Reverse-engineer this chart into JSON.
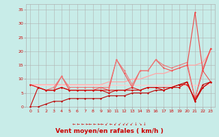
{
  "xlabel": "Vent moyen/en rafales ( km/h )",
  "background_color": "#c8ece8",
  "grid_color": "#b0b0b0",
  "text_color": "#cc0000",
  "ylim": [
    0,
    37
  ],
  "xlim": [
    -0.5,
    23.5
  ],
  "yticks": [
    0,
    5,
    10,
    15,
    20,
    25,
    30,
    35
  ],
  "xticks": [
    0,
    1,
    2,
    3,
    4,
    5,
    6,
    7,
    8,
    9,
    10,
    11,
    12,
    13,
    14,
    15,
    16,
    17,
    18,
    19,
    20,
    21,
    22,
    23
  ],
  "series": [
    {
      "x": [
        0,
        1,
        2,
        3,
        4,
        5,
        6,
        7,
        8,
        9,
        10,
        11,
        12,
        13,
        14,
        15,
        16,
        17,
        18,
        19,
        20,
        21,
        22,
        23
      ],
      "y": [
        0,
        0,
        1,
        2,
        2,
        3,
        3,
        3,
        3,
        3,
        4,
        4,
        4,
        5,
        5,
        5,
        6,
        6,
        7,
        8,
        9,
        2,
        8,
        9
      ],
      "color": "#bb0000",
      "lw": 0.8,
      "marker": "D",
      "ms": 1.5,
      "zorder": 5
    },
    {
      "x": [
        0,
        1,
        2,
        3,
        4,
        5,
        6,
        7,
        8,
        9,
        10,
        11,
        12,
        13,
        14,
        15,
        16,
        17,
        18,
        19,
        20,
        21,
        22,
        23
      ],
      "y": [
        0,
        7,
        6,
        6,
        7,
        6,
        6,
        6,
        6,
        6,
        5,
        6,
        6,
        6,
        6,
        7,
        7,
        6,
        7,
        7,
        9,
        2,
        7,
        9
      ],
      "color": "#cc0000",
      "lw": 0.8,
      "marker": "D",
      "ms": 1.5,
      "zorder": 5
    },
    {
      "x": [
        0,
        1,
        2,
        3,
        4,
        5,
        6,
        7,
        8,
        9,
        10,
        11,
        12,
        13,
        14,
        15,
        16,
        17,
        18,
        19,
        20,
        21,
        22,
        23
      ],
      "y": [
        8,
        7,
        6,
        6,
        7,
        6,
        6,
        6,
        6,
        6,
        6,
        6,
        6,
        7,
        6,
        7,
        7,
        7,
        7,
        8,
        8,
        3,
        7,
        9
      ],
      "color": "#dd2222",
      "lw": 0.8,
      "marker": "D",
      "ms": 1.5,
      "zorder": 4
    },
    {
      "x": [
        0,
        1,
        2,
        3,
        4,
        5,
        6,
        7,
        8,
        9,
        10,
        11,
        12,
        13,
        14,
        15,
        16,
        17,
        18,
        19,
        20,
        21,
        22,
        23
      ],
      "y": [
        8,
        7,
        6,
        6,
        11,
        6,
        6,
        6,
        6,
        7,
        6,
        17,
        12,
        7,
        13,
        13,
        17,
        14,
        13,
        14,
        15,
        3,
        13,
        9
      ],
      "color": "#ee5555",
      "lw": 0.8,
      "marker": "D",
      "ms": 1.5,
      "zorder": 3
    },
    {
      "x": [
        0,
        1,
        2,
        3,
        4,
        5,
        6,
        7,
        8,
        9,
        10,
        11,
        12,
        13,
        14,
        15,
        16,
        17,
        18,
        19,
        20,
        21,
        22,
        23
      ],
      "y": [
        8,
        7,
        6,
        7,
        11,
        7,
        7,
        7,
        7,
        7,
        7,
        17,
        13,
        8,
        13,
        13,
        17,
        15,
        14,
        15,
        16,
        3,
        14,
        21
      ],
      "color": "#ee7777",
      "lw": 0.8,
      "marker": "D",
      "ms": 1.5,
      "zorder": 3
    },
    {
      "x": [
        0,
        1,
        2,
        3,
        4,
        5,
        6,
        7,
        8,
        9,
        10,
        11,
        12,
        13,
        14,
        15,
        16,
        17,
        18,
        19,
        20,
        21,
        22,
        23
      ],
      "y": [
        8,
        8,
        8,
        8,
        8,
        8,
        8,
        8,
        8,
        8,
        9,
        9,
        9,
        10,
        10,
        11,
        12,
        12,
        13,
        14,
        15,
        15,
        16,
        20
      ],
      "color": "#ffaaaa",
      "lw": 1.0,
      "marker": null,
      "ms": 0,
      "zorder": 2
    },
    {
      "x": [
        0,
        1,
        2,
        3,
        4,
        5,
        6,
        7,
        8,
        9,
        10,
        11,
        12,
        13,
        14,
        15,
        16,
        17,
        18,
        19,
        20,
        21,
        22,
        23
      ],
      "y": [
        8,
        8,
        8,
        8,
        8,
        8,
        8,
        8,
        8,
        8,
        8,
        8,
        8,
        8,
        8,
        8,
        8,
        8,
        8,
        8,
        8,
        8,
        8,
        8
      ],
      "color": "#ffcccc",
      "lw": 1.0,
      "marker": null,
      "ms": 0,
      "zorder": 2
    },
    {
      "x": [
        20,
        21,
        22,
        23
      ],
      "y": [
        15,
        34,
        13,
        21
      ],
      "color": "#ee4444",
      "lw": 0.8,
      "marker": "D",
      "ms": 1.5,
      "zorder": 6
    }
  ],
  "wind_arrows": "← ← ← ←← ← ←← ↙ ← ↙ ↙ ↙↙ ↙ ↓ ↘ ↓",
  "xlabel_fontsize": 6.5,
  "tick_fontsize": 4.5
}
